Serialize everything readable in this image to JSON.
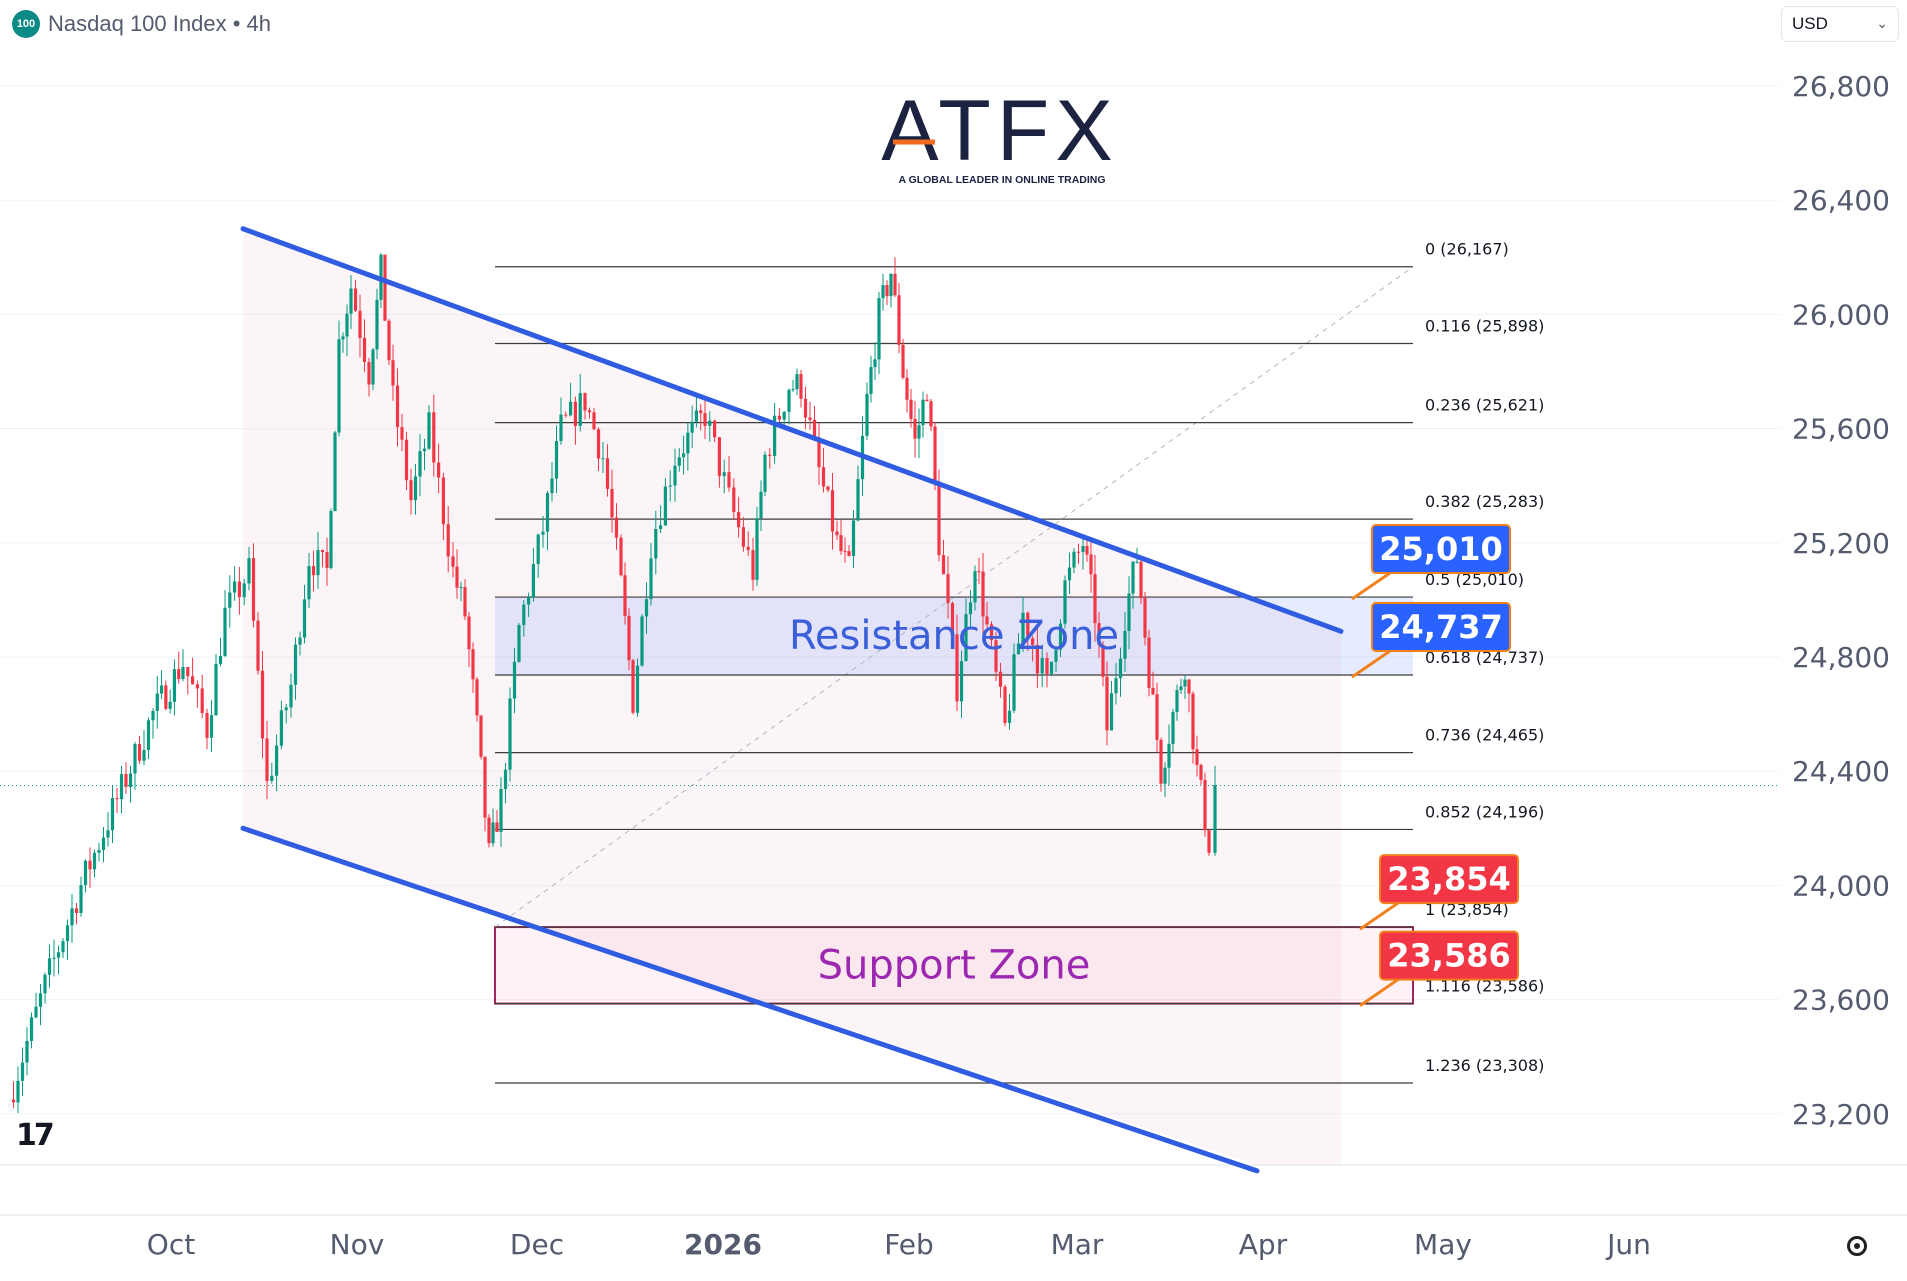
{
  "header": {
    "symbol_badge": "100",
    "title": "Nasdaq 100 Index • 4h",
    "currency": "USD"
  },
  "logo": {
    "brand": "ATFX",
    "tagline": "A GLOBAL LEADER IN ONLINE TRADING"
  },
  "colors": {
    "channel": "#2f5ce0",
    "resistance_label": "#2962ff",
    "support_label": "#f23645",
    "candle_up": "#089981",
    "candle_down": "#f23645",
    "resistance_zone_text": "#3a5fd9",
    "support_zone_text": "#9c27b0"
  },
  "chart_data": {
    "type": "candlestick",
    "title": "Nasdaq 100 Index • 4h",
    "ylim": [
      23000,
      27000
    ],
    "y_ticks": [
      26800,
      26400,
      26000,
      25600,
      25200,
      24800,
      24400,
      24000,
      23600,
      23200
    ],
    "y_tick_labels": [
      "26,800",
      "26,400",
      "26,000",
      "25,600",
      "25,200",
      "24,800",
      "24,400",
      "24,000",
      "23,600",
      "23,200"
    ],
    "x_labels": [
      {
        "label": "Oct",
        "date": "2025-10-01"
      },
      {
        "label": "Nov",
        "date": "2025-11-01"
      },
      {
        "label": "Dec",
        "date": "2025-12-01"
      },
      {
        "label": "2026",
        "date": "2026-01-01"
      },
      {
        "label": "Feb",
        "date": "2026-02-01"
      },
      {
        "label": "Mar",
        "date": "2026-03-01"
      },
      {
        "label": "Apr",
        "date": "2026-04-01"
      },
      {
        "label": "May",
        "date": "2026-05-01"
      },
      {
        "label": "Jun",
        "date": "2026-06-01"
      }
    ],
    "price_path": [
      {
        "date": "2025-09-04",
        "value": 23250
      },
      {
        "date": "2025-09-10",
        "value": 23650
      },
      {
        "date": "2025-09-16",
        "value": 24000
      },
      {
        "date": "2025-09-22",
        "value": 24300
      },
      {
        "date": "2025-09-28",
        "value": 24600
      },
      {
        "date": "2025-10-03",
        "value": 24780
      },
      {
        "date": "2025-10-07",
        "value": 24550
      },
      {
        "date": "2025-10-10",
        "value": 24950
      },
      {
        "date": "2025-10-14",
        "value": 25100
      },
      {
        "date": "2025-10-17",
        "value": 24350
      },
      {
        "date": "2025-10-21",
        "value": 24700
      },
      {
        "date": "2025-10-24",
        "value": 25150
      },
      {
        "date": "2025-10-27",
        "value": 25100
      },
      {
        "date": "2025-10-29",
        "value": 25900
      },
      {
        "date": "2025-10-31",
        "value": 26100
      },
      {
        "date": "2025-11-03",
        "value": 25800
      },
      {
        "date": "2025-11-05",
        "value": 26150
      },
      {
        "date": "2025-11-07",
        "value": 25700
      },
      {
        "date": "2025-11-10",
        "value": 25350
      },
      {
        "date": "2025-11-13",
        "value": 25600
      },
      {
        "date": "2025-11-17",
        "value": 25100
      },
      {
        "date": "2025-11-19",
        "value": 24950
      },
      {
        "date": "2025-11-21",
        "value": 24550
      },
      {
        "date": "2025-11-23",
        "value": 24100
      },
      {
        "date": "2025-11-25",
        "value": 24300
      },
      {
        "date": "2025-11-28",
        "value": 24900
      },
      {
        "date": "2025-12-02",
        "value": 25250
      },
      {
        "date": "2025-12-05",
        "value": 25600
      },
      {
        "date": "2025-12-09",
        "value": 25700
      },
      {
        "date": "2025-12-12",
        "value": 25500
      },
      {
        "date": "2025-12-15",
        "value": 25050
      },
      {
        "date": "2025-12-17",
        "value": 24650
      },
      {
        "date": "2025-12-20",
        "value": 25200
      },
      {
        "date": "2025-12-24",
        "value": 25500
      },
      {
        "date": "2025-12-29",
        "value": 25650
      },
      {
        "date": "2026-01-02",
        "value": 25350
      },
      {
        "date": "2026-01-06",
        "value": 25100
      },
      {
        "date": "2026-01-08",
        "value": 25500
      },
      {
        "date": "2026-01-12",
        "value": 25750
      },
      {
        "date": "2026-01-14",
        "value": 25750
      },
      {
        "date": "2026-01-17",
        "value": 25450
      },
      {
        "date": "2026-01-20",
        "value": 25200
      },
      {
        "date": "2026-01-22",
        "value": 25100
      },
      {
        "date": "2026-01-25",
        "value": 25700
      },
      {
        "date": "2026-01-27",
        "value": 26000
      },
      {
        "date": "2026-01-29",
        "value": 26150
      },
      {
        "date": "2026-01-31",
        "value": 25800
      },
      {
        "date": "2026-02-02",
        "value": 25550
      },
      {
        "date": "2026-02-04",
        "value": 25750
      },
      {
        "date": "2026-02-06",
        "value": 25200
      },
      {
        "date": "2026-02-09",
        "value": 24700
      },
      {
        "date": "2026-02-12",
        "value": 25150
      },
      {
        "date": "2026-02-14",
        "value": 24900
      },
      {
        "date": "2026-02-17",
        "value": 24550
      },
      {
        "date": "2026-02-20",
        "value": 24950
      },
      {
        "date": "2026-02-24",
        "value": 24700
      },
      {
        "date": "2026-02-27",
        "value": 25050
      },
      {
        "date": "2026-03-02",
        "value": 25200
      },
      {
        "date": "2026-03-04",
        "value": 24950
      },
      {
        "date": "2026-03-06",
        "value": 24550
      },
      {
        "date": "2026-03-09",
        "value": 24950
      },
      {
        "date": "2026-03-11",
        "value": 25150
      },
      {
        "date": "2026-03-13",
        "value": 24750
      },
      {
        "date": "2026-03-15",
        "value": 24400
      },
      {
        "date": "2026-03-17",
        "value": 24600
      },
      {
        "date": "2026-03-19",
        "value": 24780
      },
      {
        "date": "2026-03-21",
        "value": 24400
      },
      {
        "date": "2026-03-23",
        "value": 24150
      },
      {
        "date": "2026-03-24",
        "value": 24350
      }
    ],
    "last_price": 24350,
    "fibonacci_levels": [
      {
        "ratio": "0",
        "value": 26167,
        "label": "0 (26,167)"
      },
      {
        "ratio": "0.116",
        "value": 25898,
        "label": "0.116 (25,898)"
      },
      {
        "ratio": "0.236",
        "value": 25621,
        "label": "0.236 (25,621)"
      },
      {
        "ratio": "0.382",
        "value": 25283,
        "label": "0.382 (25,283)"
      },
      {
        "ratio": "0.5",
        "value": 25010,
        "label": "0.5 (25,010)"
      },
      {
        "ratio": "0.618",
        "value": 24737,
        "label": "0.618 (24,737)"
      },
      {
        "ratio": "0.736",
        "value": 24465,
        "label": "0.736 (24,465)"
      },
      {
        "ratio": "0.852",
        "value": 24196,
        "label": "0.852 (24,196)"
      },
      {
        "ratio": "1",
        "value": 23854,
        "label": "1 (23,854)"
      },
      {
        "ratio": "1.116",
        "value": 23586,
        "label": "1.116 (23,586)"
      },
      {
        "ratio": "1.236",
        "value": 23308,
        "label": "1.236 (23,308)"
      }
    ],
    "fib_range": {
      "start": "2025-11-24",
      "end": "2026-04-26"
    },
    "fib_anchor": {
      "from_date": "2025-11-24",
      "from_value": 23854,
      "to_date": "2026-04-26",
      "to_value": 26167
    },
    "channel": {
      "upper": [
        {
          "date": "2025-10-13",
          "value": 26300
        },
        {
          "date": "2026-04-14",
          "value": 24890
        }
      ],
      "lower": [
        {
          "date": "2025-10-13",
          "value": 24200
        },
        {
          "date": "2026-03-31",
          "value": 23000
        }
      ],
      "fill_end_date": "2026-04-14"
    },
    "zones": [
      {
        "name": "Resistance Zone",
        "from": 24737,
        "to": 25010,
        "start": "2025-11-24",
        "end": "2026-04-26"
      },
      {
        "name": "Support Zone",
        "from": 23586,
        "to": 23854,
        "start": "2025-11-24",
        "end": "2026-04-26"
      }
    ],
    "price_labels": [
      {
        "text": "25,010",
        "value": 25010,
        "kind": "resistance"
      },
      {
        "text": "24,737",
        "value": 24737,
        "kind": "resistance"
      },
      {
        "text": "23,854",
        "value": 23854,
        "kind": "support"
      },
      {
        "text": "23,586",
        "value": 23586,
        "kind": "support"
      }
    ]
  }
}
